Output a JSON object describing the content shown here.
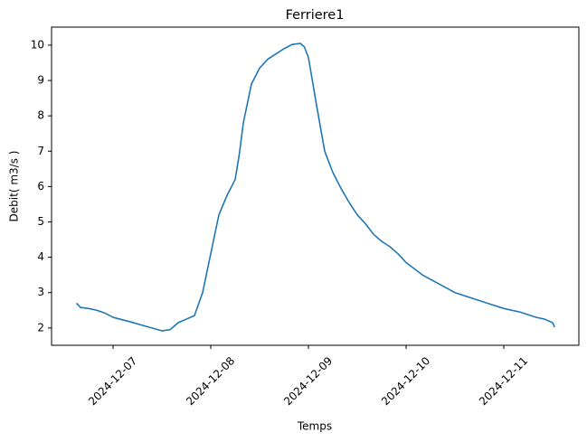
{
  "chart_data": {
    "type": "line",
    "title": "Ferriere1",
    "xlabel": "Temps",
    "ylabel": "Debit( m3/s )",
    "x": [
      "2024-12-06T15:00",
      "2024-12-06T16:00",
      "2024-12-06T18:00",
      "2024-12-06T20:00",
      "2024-12-06T22:00",
      "2024-12-07T00:00",
      "2024-12-07T04:00",
      "2024-12-07T08:00",
      "2024-12-07T12:00",
      "2024-12-07T14:00",
      "2024-12-07T16:00",
      "2024-12-07T18:00",
      "2024-12-07T20:00",
      "2024-12-07T22:00",
      "2024-12-08T00:00",
      "2024-12-08T02:00",
      "2024-12-08T04:00",
      "2024-12-08T06:00",
      "2024-12-08T07:00",
      "2024-12-08T08:00",
      "2024-12-08T10:00",
      "2024-12-08T12:00",
      "2024-12-08T14:00",
      "2024-12-08T16:00",
      "2024-12-08T18:00",
      "2024-12-08T20:00",
      "2024-12-08T22:00",
      "2024-12-08T23:00",
      "2024-12-09T00:00",
      "2024-12-09T02:00",
      "2024-12-09T04:00",
      "2024-12-09T06:00",
      "2024-12-09T08:00",
      "2024-12-09T10:00",
      "2024-12-09T12:00",
      "2024-12-09T14:00",
      "2024-12-09T16:00",
      "2024-12-09T18:00",
      "2024-12-09T20:00",
      "2024-12-09T22:00",
      "2024-12-10T00:00",
      "2024-12-10T04:00",
      "2024-12-10T08:00",
      "2024-12-10T12:00",
      "2024-12-10T16:00",
      "2024-12-10T20:00",
      "2024-12-11T00:00",
      "2024-12-11T04:00",
      "2024-12-11T08:00",
      "2024-12-11T10:00",
      "2024-12-11T12:00",
      "2024-12-11T12:30"
    ],
    "series": [
      {
        "name": "Debit",
        "color": "#1f77b4",
        "values": [
          2.7,
          2.58,
          2.55,
          2.5,
          2.42,
          2.3,
          2.18,
          2.05,
          1.92,
          1.95,
          2.15,
          2.25,
          2.35,
          3.0,
          4.1,
          5.2,
          5.75,
          6.2,
          6.9,
          7.8,
          8.9,
          9.35,
          9.6,
          9.75,
          9.9,
          10.02,
          10.05,
          9.95,
          9.65,
          8.3,
          7.0,
          6.4,
          5.95,
          5.55,
          5.2,
          4.95,
          4.65,
          4.45,
          4.3,
          4.1,
          3.85,
          3.5,
          3.25,
          3.0,
          2.85,
          2.7,
          2.55,
          2.45,
          2.3,
          2.25,
          2.15,
          2.02
        ]
      }
    ],
    "xlim": [
      "2024-12-06T08:53",
      "2024-12-11T18:27"
    ],
    "xticks": [
      "2024-12-07",
      "2024-12-08",
      "2024-12-09",
      "2024-12-10",
      "2024-12-11"
    ],
    "ylim": [
      1.51,
      10.51
    ],
    "yticks": [
      2,
      3,
      4,
      5,
      6,
      7,
      8,
      9,
      10
    ]
  }
}
